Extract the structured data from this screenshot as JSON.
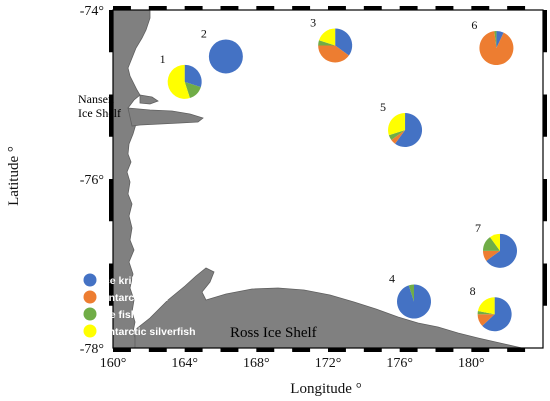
{
  "axes": {
    "xlabel": "Longitude °",
    "ylabel": "Latitude °",
    "x_ticks": [
      "160°",
      "164°",
      "168°",
      "172°",
      "176°",
      "180°"
    ],
    "y_ticks": [
      "-74°",
      "-76°",
      "-78°"
    ]
  },
  "map_labels": {
    "nansen_line1": "Nansen",
    "nansen_line2": "Ice Shelf",
    "ross": "Ross Ice Shelf"
  },
  "colors": {
    "ice_krill": "#4472c4",
    "antarctic_krill": "#ed7d31",
    "ice_fish": "#70ad47",
    "antarctic_silverfish": "#ffff00",
    "land": "#808080",
    "land_edge": "#5f5f5f"
  },
  "legend": [
    {
      "key": "ice_krill",
      "label": "Ice krill"
    },
    {
      "key": "antarctic_krill",
      "label": "Antarctic krill"
    },
    {
      "key": "ice_fish",
      "label": "Ice fish"
    },
    {
      "key": "antarctic_silverfish",
      "label": "Antarctic silverfish"
    }
  ],
  "chart_data": {
    "type": "pie",
    "x_range": [
      160,
      184
    ],
    "y_range": [
      -78,
      -74
    ],
    "categories": [
      "Ice krill",
      "Antarctic krill",
      "Ice fish",
      "Antarctic silverfish"
    ],
    "stations": [
      {
        "id": "1",
        "lon": 164.0,
        "lat": -74.85,
        "fractions": [
          0.3,
          0.0,
          0.15,
          0.55
        ]
      },
      {
        "id": "2",
        "lon": 166.3,
        "lat": -74.55,
        "fractions": [
          1.0,
          0.0,
          0.0,
          0.0
        ]
      },
      {
        "id": "3",
        "lon": 172.4,
        "lat": -74.42,
        "fractions": [
          0.35,
          0.4,
          0.05,
          0.2
        ]
      },
      {
        "id": "4",
        "lon": 176.8,
        "lat": -77.45,
        "fractions": [
          0.95,
          0.0,
          0.05,
          0.0
        ]
      },
      {
        "id": "5",
        "lon": 176.3,
        "lat": -75.42,
        "fractions": [
          0.6,
          0.05,
          0.05,
          0.3
        ]
      },
      {
        "id": "6",
        "lon": 181.4,
        "lat": -74.45,
        "fractions": [
          0.07,
          0.91,
          0.02,
          0.0
        ]
      },
      {
        "id": "7",
        "lon": 181.6,
        "lat": -76.85,
        "fractions": [
          0.65,
          0.1,
          0.15,
          0.1
        ]
      },
      {
        "id": "8",
        "lon": 181.3,
        "lat": -77.6,
        "fractions": [
          0.63,
          0.12,
          0.03,
          0.22
        ]
      }
    ]
  }
}
